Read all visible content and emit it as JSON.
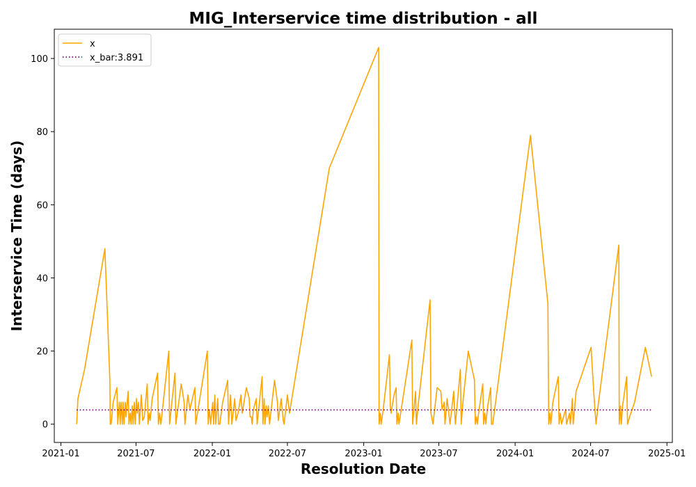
{
  "chart_data": {
    "type": "line",
    "title": "MIG_Interservice time distribution - all",
    "xlabel": "Resolution Date",
    "ylabel": "Interservice Time (days)",
    "xlim": [
      "2020-12-16",
      "2025-01-14"
    ],
    "ylim": [
      -5,
      108
    ],
    "x_ticks": [
      "2021-01-01",
      "2021-07-01",
      "2022-01-01",
      "2022-07-01",
      "2023-01-01",
      "2023-07-01",
      "2024-01-01",
      "2024-07-01",
      "2025-01-01"
    ],
    "x_tick_labels": [
      "2021-01",
      "2021-07",
      "2022-01",
      "2022-07",
      "2023-01",
      "2023-07",
      "2024-01",
      "2024-07",
      "2025-01"
    ],
    "y_ticks": [
      0,
      20,
      40,
      60,
      80,
      100
    ],
    "y_tick_labels": [
      "0",
      "20",
      "40",
      "60",
      "80",
      "100"
    ],
    "legend_position": "top-left",
    "grid": false,
    "series": [
      {
        "name": "x",
        "color": "#ffa500",
        "style": "solid",
        "points": [
          [
            "2021-02-08",
            0
          ],
          [
            "2021-02-11",
            7
          ],
          [
            "2021-02-27",
            15
          ],
          [
            "2021-04-17",
            48
          ],
          [
            "2021-04-29",
            12
          ],
          [
            "2021-04-30",
            0
          ],
          [
            "2021-05-02",
            0
          ],
          [
            "2021-05-07",
            6
          ],
          [
            "2021-05-16",
            10
          ],
          [
            "2021-05-18",
            0
          ],
          [
            "2021-05-22",
            6
          ],
          [
            "2021-05-24",
            0
          ],
          [
            "2021-05-26",
            6
          ],
          [
            "2021-05-29",
            0
          ],
          [
            "2021-05-31",
            6
          ],
          [
            "2021-06-02",
            0
          ],
          [
            "2021-06-05",
            6
          ],
          [
            "2021-06-07",
            2
          ],
          [
            "2021-06-12",
            9
          ],
          [
            "2021-06-14",
            0
          ],
          [
            "2021-06-17",
            3
          ],
          [
            "2021-06-19",
            0
          ],
          [
            "2021-06-22",
            5
          ],
          [
            "2021-06-24",
            0
          ],
          [
            "2021-06-27",
            6
          ],
          [
            "2021-06-29",
            0
          ],
          [
            "2021-07-02",
            7
          ],
          [
            "2021-07-04",
            3
          ],
          [
            "2021-07-07",
            6
          ],
          [
            "2021-07-09",
            0
          ],
          [
            "2021-07-14",
            8
          ],
          [
            "2021-07-17",
            1
          ],
          [
            "2021-07-21",
            2
          ],
          [
            "2021-07-28",
            11
          ],
          [
            "2021-07-30",
            0
          ],
          [
            "2021-08-02",
            3
          ],
          [
            "2021-08-04",
            1
          ],
          [
            "2021-08-09",
            7
          ],
          [
            "2021-08-22",
            14
          ],
          [
            "2021-08-24",
            0
          ],
          [
            "2021-08-27",
            3
          ],
          [
            "2021-08-30",
            0
          ],
          [
            "2021-09-18",
            20
          ],
          [
            "2021-09-20",
            0
          ],
          [
            "2021-10-03",
            14
          ],
          [
            "2021-10-05",
            0
          ],
          [
            "2021-10-18",
            11
          ],
          [
            "2021-10-25",
            6
          ],
          [
            "2021-10-27",
            0
          ],
          [
            "2021-11-03",
            8
          ],
          [
            "2021-11-08",
            4
          ],
          [
            "2021-11-20",
            10
          ],
          [
            "2021-11-22",
            0
          ],
          [
            "2021-12-20",
            20
          ],
          [
            "2021-12-22",
            0
          ],
          [
            "2021-12-25",
            4
          ],
          [
            "2021-12-28",
            0
          ],
          [
            "2022-01-02",
            6
          ],
          [
            "2022-01-04",
            0
          ],
          [
            "2022-01-07",
            8
          ],
          [
            "2022-01-09",
            0
          ],
          [
            "2022-01-14",
            7
          ],
          [
            "2022-01-16",
            0
          ],
          [
            "2022-01-19",
            0
          ],
          [
            "2022-01-26",
            6
          ],
          [
            "2022-02-07",
            12
          ],
          [
            "2022-02-09",
            0
          ],
          [
            "2022-02-14",
            8
          ],
          [
            "2022-02-17",
            0
          ],
          [
            "2022-02-24",
            7
          ],
          [
            "2022-02-27",
            1
          ],
          [
            "2022-03-04",
            3
          ],
          [
            "2022-03-11",
            8
          ],
          [
            "2022-03-14",
            3
          ],
          [
            "2022-03-24",
            10
          ],
          [
            "2022-03-31",
            7
          ],
          [
            "2022-04-02",
            2
          ],
          [
            "2022-04-05",
            2
          ],
          [
            "2022-04-07",
            0
          ],
          [
            "2022-04-10",
            4
          ],
          [
            "2022-04-17",
            7
          ],
          [
            "2022-04-19",
            0
          ],
          [
            "2022-05-01",
            13
          ],
          [
            "2022-05-03",
            0
          ],
          [
            "2022-05-06",
            7
          ],
          [
            "2022-05-08",
            0
          ],
          [
            "2022-05-11",
            5
          ],
          [
            "2022-05-13",
            2
          ],
          [
            "2022-05-16",
            5
          ],
          [
            "2022-05-19",
            0
          ],
          [
            "2022-05-31",
            12
          ],
          [
            "2022-06-07",
            6
          ],
          [
            "2022-06-09",
            1
          ],
          [
            "2022-06-16",
            7
          ],
          [
            "2022-06-21",
            1
          ],
          [
            "2022-06-23",
            0
          ],
          [
            "2022-07-01",
            8
          ],
          [
            "2022-07-06",
            3
          ],
          [
            "2022-10-10",
            70
          ],
          [
            "2023-02-06",
            103
          ],
          [
            "2023-02-07",
            0
          ],
          [
            "2023-02-10",
            3
          ],
          [
            "2023-02-12",
            0
          ],
          [
            "2023-02-17",
            4
          ],
          [
            "2023-03-04",
            19
          ],
          [
            "2023-03-06",
            5
          ],
          [
            "2023-03-08",
            3
          ],
          [
            "2023-03-15",
            8
          ],
          [
            "2023-03-20",
            10
          ],
          [
            "2023-03-22",
            0
          ],
          [
            "2023-03-25",
            3
          ],
          [
            "2023-03-27",
            0
          ],
          [
            "2023-04-27",
            23
          ],
          [
            "2023-04-29",
            0
          ],
          [
            "2023-05-06",
            9
          ],
          [
            "2023-05-08",
            0
          ],
          [
            "2023-05-13",
            6
          ],
          [
            "2023-06-10",
            34
          ],
          [
            "2023-06-12",
            3
          ],
          [
            "2023-06-17",
            0
          ],
          [
            "2023-06-27",
            10
          ],
          [
            "2023-07-06",
            9
          ],
          [
            "2023-07-09",
            4
          ],
          [
            "2023-07-14",
            6
          ],
          [
            "2023-07-16",
            0
          ],
          [
            "2023-07-21",
            7
          ],
          [
            "2023-07-28",
            0
          ],
          [
            "2023-08-06",
            9
          ],
          [
            "2023-08-08",
            4
          ],
          [
            "2023-08-10",
            0
          ],
          [
            "2023-08-22",
            15
          ],
          [
            "2023-08-24",
            0
          ],
          [
            "2023-08-29",
            7
          ],
          [
            "2023-09-10",
            20
          ],
          [
            "2023-09-25",
            12
          ],
          [
            "2023-09-27",
            0
          ],
          [
            "2023-09-30",
            2
          ],
          [
            "2023-10-02",
            0
          ],
          [
            "2023-10-05",
            3
          ],
          [
            "2023-10-15",
            11
          ],
          [
            "2023-10-17",
            0
          ],
          [
            "2023-10-20",
            3
          ],
          [
            "2023-10-22",
            0
          ],
          [
            "2023-10-27",
            5
          ],
          [
            "2023-11-03",
            10
          ],
          [
            "2023-11-05",
            0
          ],
          [
            "2023-11-08",
            0
          ],
          [
            "2024-02-07",
            79
          ],
          [
            "2024-03-20",
            33
          ],
          [
            "2024-03-22",
            0
          ],
          [
            "2024-03-25",
            3
          ],
          [
            "2024-03-27",
            0
          ],
          [
            "2024-04-01",
            6
          ],
          [
            "2024-04-14",
            13
          ],
          [
            "2024-04-16",
            0
          ],
          [
            "2024-04-19",
            3
          ],
          [
            "2024-04-22",
            0
          ],
          [
            "2024-04-29",
            3
          ],
          [
            "2024-05-02",
            4
          ],
          [
            "2024-05-04",
            0
          ],
          [
            "2024-05-11",
            3
          ],
          [
            "2024-05-13",
            0
          ],
          [
            "2024-05-18",
            7
          ],
          [
            "2024-05-20",
            0
          ],
          [
            "2024-05-27",
            9
          ],
          [
            "2024-06-11",
            14
          ],
          [
            "2024-07-02",
            21
          ],
          [
            "2024-07-09",
            8
          ],
          [
            "2024-07-14",
            0
          ],
          [
            "2024-07-19",
            5
          ],
          [
            "2024-09-07",
            49
          ],
          [
            "2024-09-08",
            0
          ],
          [
            "2024-09-11",
            5
          ],
          [
            "2024-09-13",
            0
          ],
          [
            "2024-09-16",
            5
          ],
          [
            "2024-09-26",
            13
          ],
          [
            "2024-09-28",
            0
          ],
          [
            "2024-10-03",
            2
          ],
          [
            "2024-10-15",
            6
          ],
          [
            "2024-11-10",
            21
          ],
          [
            "2024-11-25",
            13
          ]
        ]
      },
      {
        "name": "x_bar:3.891",
        "color": "#800080",
        "style": "dotted",
        "points": [
          [
            "2021-02-08",
            3.891
          ],
          [
            "2024-11-25",
            3.891
          ]
        ]
      }
    ]
  }
}
